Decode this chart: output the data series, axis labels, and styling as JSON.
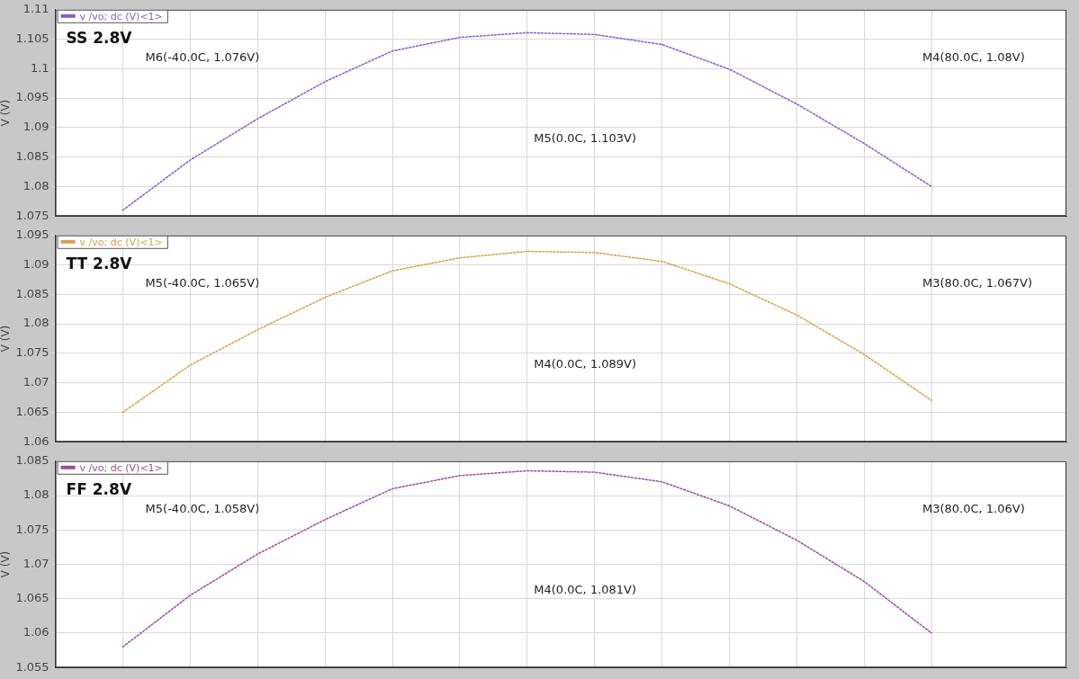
{
  "chart_data": [
    {
      "type": "line",
      "title": "SS 2.8V",
      "ylabel": "V (V)",
      "categories": [
        null,
        null,
        null,
        null,
        null,
        null,
        null,
        null,
        null,
        null,
        null,
        null,
        null
      ],
      "series": [
        {
          "name": "v /vo; dc (V)<1>",
          "color": "#8a5cc8",
          "values": [
            1.076,
            1.0845,
            1.0915,
            1.0978,
            1.103,
            1.1053,
            1.1061,
            1.1058,
            1.1041,
            1.0999,
            1.094,
            1.0873,
            1.08
          ]
        }
      ],
      "ylim": [
        1.075,
        1.11
      ],
      "yticks": [
        1.075,
        1.08,
        1.085,
        1.09,
        1.095,
        1.1,
        1.105,
        1.11
      ],
      "annotations": [
        "M6(-40.0C, 1.076V)",
        "M5(0.0C, 1.103V)",
        "M4(80.0C, 1.08V)"
      ],
      "grid": true,
      "legend": "top left",
      "tick_labels": "y",
      "line_style": "dotted"
    },
    {
      "type": "line",
      "title": "TT 2.8V",
      "ylabel": "V (V)",
      "categories": [
        null,
        null,
        null,
        null,
        null,
        null,
        null,
        null,
        null,
        null,
        null,
        null,
        null
      ],
      "series": [
        {
          "name": "v /vo; dc (V)<1>",
          "color": "#d4a24a",
          "values": [
            1.065,
            1.073,
            1.079,
            1.0845,
            1.089,
            1.0912,
            1.0923,
            1.0921,
            1.0906,
            1.0868,
            1.0815,
            1.0748,
            1.067
          ]
        }
      ],
      "ylim": [
        1.06,
        1.095
      ],
      "yticks": [
        1.06,
        1.065,
        1.07,
        1.075,
        1.08,
        1.085,
        1.09,
        1.095
      ],
      "annotations": [
        "M5(-40.0C, 1.065V)",
        "M4(0.0C, 1.089V)",
        "M3(80.0C, 1.067V)"
      ],
      "grid": true,
      "legend": "top left",
      "tick_labels": "y",
      "line_style": "dotted"
    },
    {
      "type": "line",
      "title": "FF 2.8V",
      "ylabel": "V (V)",
      "categories": [
        null,
        null,
        null,
        null,
        null,
        null,
        null,
        null,
        null,
        null,
        null,
        null,
        null
      ],
      "series": [
        {
          "name": "v /vo; dc (V)<1>",
          "color": "#9c4c9c",
          "values": [
            1.058,
            1.0655,
            1.0715,
            1.0765,
            1.081,
            1.0829,
            1.0836,
            1.0834,
            1.082,
            1.0785,
            1.0735,
            1.0675,
            1.06
          ]
        }
      ],
      "ylim": [
        1.055,
        1.085
      ],
      "yticks": [
        1.055,
        1.06,
        1.065,
        1.07,
        1.075,
        1.08,
        1.085
      ],
      "annotations": [
        "M5(-40.0C, 1.058V)",
        "M4(0.0C, 1.081V)",
        "M3(80.0C, 1.06V)"
      ],
      "grid": true,
      "legend": "top left",
      "tick_labels": "y",
      "line_style": "dotted"
    }
  ]
}
